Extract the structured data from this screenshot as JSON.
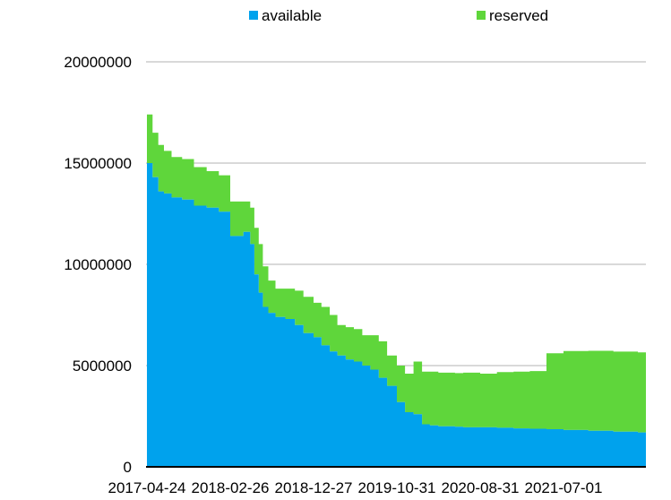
{
  "chart_data": {
    "type": "area",
    "stacked": true,
    "x_tick_labels": [
      "2017-04-24",
      "2018-02-26",
      "2018-12-27",
      "2019-10-31",
      "2020-08-31",
      "2021-07-01"
    ],
    "y_tick_labels": [
      "0",
      "5000000",
      "10000000",
      "15000000",
      "20000000"
    ],
    "ylim": [
      0,
      20000000
    ],
    "grid": true,
    "legend_position": "top",
    "series": [
      {
        "name": "available",
        "color": "#00a2ed",
        "x": [
          "2017-04-24",
          "2017-05-15",
          "2017-06-05",
          "2017-06-26",
          "2017-07-24",
          "2017-09-01",
          "2017-10-15",
          "2017-12-01",
          "2018-01-15",
          "2018-02-26",
          "2018-03-20",
          "2018-04-15",
          "2018-05-10",
          "2018-05-25",
          "2018-06-10",
          "2018-06-25",
          "2018-07-15",
          "2018-08-10",
          "2018-09-15",
          "2018-10-20",
          "2018-11-20",
          "2018-12-27",
          "2019-01-25",
          "2019-02-25",
          "2019-03-25",
          "2019-04-25",
          "2019-05-25",
          "2019-06-25",
          "2019-07-25",
          "2019-08-25",
          "2019-09-25",
          "2019-10-31",
          "2019-11-30",
          "2019-12-31",
          "2020-01-31",
          "2020-02-29",
          "2020-03-31",
          "2020-04-30",
          "2020-05-31",
          "2020-06-30",
          "2020-07-31",
          "2020-08-31",
          "2020-10-31",
          "2020-12-31",
          "2021-02-28",
          "2021-04-30",
          "2021-07-01",
          "2021-09-30",
          "2021-12-31",
          "2022-03-31",
          "2022-06-30",
          "2022-08-31"
        ],
        "values": [
          15000000,
          14300000,
          13600000,
          13500000,
          13300000,
          13200000,
          12900000,
          12800000,
          12600000,
          11400000,
          11400000,
          11600000,
          11000000,
          9500000,
          8600000,
          7900000,
          7600000,
          7400000,
          7300000,
          7000000,
          6600000,
          6400000,
          6000000,
          5700000,
          5500000,
          5300000,
          5200000,
          5000000,
          4800000,
          4400000,
          4000000,
          3200000,
          2700000,
          2600000,
          2100000,
          2050000,
          2000000,
          2000000,
          1980000,
          1950000,
          1950000,
          1950000,
          1930000,
          1900000,
          1880000,
          1860000,
          1820000,
          1780000,
          1740000,
          1700000,
          1650000,
          1600000
        ]
      },
      {
        "name": "reserved",
        "color": "#5fd63b",
        "x": [
          "2017-04-24",
          "2017-05-15",
          "2017-06-05",
          "2017-06-26",
          "2017-07-24",
          "2017-09-01",
          "2017-10-15",
          "2017-12-01",
          "2018-01-15",
          "2018-02-26",
          "2018-03-20",
          "2018-04-15",
          "2018-05-10",
          "2018-05-25",
          "2018-06-10",
          "2018-06-25",
          "2018-07-15",
          "2018-08-10",
          "2018-09-15",
          "2018-10-20",
          "2018-11-20",
          "2018-12-27",
          "2019-01-25",
          "2019-02-25",
          "2019-03-25",
          "2019-04-25",
          "2019-05-25",
          "2019-06-25",
          "2019-07-25",
          "2019-08-25",
          "2019-09-25",
          "2019-10-31",
          "2019-11-30",
          "2019-12-31",
          "2020-01-31",
          "2020-02-29",
          "2020-03-31",
          "2020-04-30",
          "2020-05-31",
          "2020-06-30",
          "2020-07-31",
          "2020-08-31",
          "2020-10-31",
          "2020-12-31",
          "2021-02-28",
          "2021-04-30",
          "2021-07-01",
          "2021-09-30",
          "2021-12-31",
          "2022-03-31",
          "2022-06-30",
          "2022-08-31"
        ],
        "values": [
          2400000,
          2200000,
          2300000,
          2100000,
          2000000,
          2000000,
          1900000,
          1800000,
          1800000,
          1700000,
          1700000,
          1500000,
          1800000,
          2300000,
          2400000,
          2000000,
          1600000,
          1400000,
          1500000,
          1700000,
          1800000,
          1700000,
          1900000,
          1800000,
          1500000,
          1600000,
          1600000,
          1500000,
          1700000,
          1800000,
          1500000,
          1800000,
          1900000,
          2600000,
          2600000,
          2650000,
          2650000,
          2650000,
          2650000,
          2700000,
          2700000,
          2650000,
          2750000,
          2800000,
          2850000,
          3750000,
          3900000,
          3950000,
          3950000,
          3950000,
          3950000,
          3950000
        ]
      }
    ]
  }
}
